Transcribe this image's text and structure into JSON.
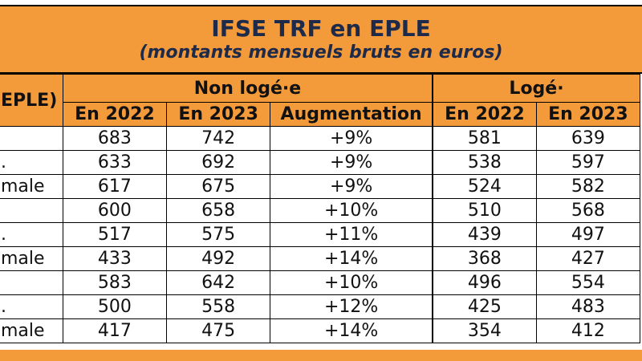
{
  "title": "IFSE TRF en EPLE",
  "subtitle": "(montants mensuels bruts en euros)",
  "left_header": "EPLE)",
  "groups": {
    "non_loge": "Non logé·e",
    "loge": "Logé·"
  },
  "columns": [
    "En 2022",
    "En 2023",
    "Augmentation",
    "En 2022",
    "En 2023"
  ],
  "rows": [
    {
      "label": "",
      "v": [
        "683",
        "742",
        "+9%",
        "581",
        "639"
      ]
    },
    {
      "label": ".",
      "v": [
        "633",
        "692",
        "+9%",
        "538",
        "597"
      ]
    },
    {
      "label": "male",
      "v": [
        "617",
        "675",
        "+9%",
        "524",
        "582"
      ]
    },
    {
      "label": "",
      "v": [
        "600",
        "658",
        "+10%",
        "510",
        "568"
      ]
    },
    {
      "label": ".",
      "v": [
        "517",
        "575",
        "+11%",
        "439",
        "497"
      ]
    },
    {
      "label": "male",
      "v": [
        "433",
        "492",
        "+14%",
        "368",
        "427"
      ]
    },
    {
      "label": "",
      "v": [
        "583",
        "642",
        "+10%",
        "496",
        "554"
      ]
    },
    {
      "label": ".",
      "v": [
        "500",
        "558",
        "+12%",
        "425",
        "483"
      ]
    },
    {
      "label": "male",
      "v": [
        "417",
        "475",
        "+14%",
        "354",
        "412"
      ]
    }
  ],
  "colors": {
    "header_orange": "#f39a3b",
    "title_text": "#1d2a4a"
  }
}
